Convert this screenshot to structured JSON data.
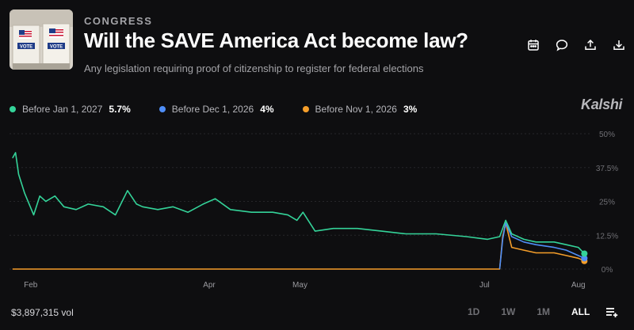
{
  "market": {
    "category": "CONGRESS",
    "title": "Will the SAVE America Act become law?",
    "subtitle": "Any legislation requiring proof of citizenship to register for federal elections",
    "thumbnail_icon": "ballot-box-image",
    "thumbnail_text": "VOTE"
  },
  "toolbar": {
    "icons": [
      "calendar-icon",
      "comment-icon",
      "share-icon",
      "download-icon"
    ]
  },
  "legend": [
    {
      "label": "Before Jan 1, 2027",
      "value": "5.7%",
      "color": "#34d399"
    },
    {
      "label": "Before Dec 1, 2026",
      "value": "4%",
      "color": "#4f8ef7"
    },
    {
      "label": "Before Nov 1, 2026",
      "value": "3%",
      "color": "#f59e2a"
    }
  ],
  "brand": "Kalshi",
  "chart_data": {
    "type": "line",
    "x_ticks": [
      "Feb",
      "Apr",
      "May",
      "Jul",
      "Aug"
    ],
    "y_ticks": [
      "50%",
      "37.5%",
      "25%",
      "12.5%",
      "0%"
    ],
    "ylim": [
      0,
      50
    ],
    "grid": true,
    "legend_position": "top-left",
    "series": [
      {
        "name": "Before Jan 1, 2027",
        "color": "#34d399",
        "x": [
          "Jan 26",
          "Jan 27",
          "Jan 28",
          "Jan 30",
          "Feb 2",
          "Feb 4",
          "Feb 6",
          "Feb 9",
          "Feb 12",
          "Feb 16",
          "Feb 20",
          "Feb 25",
          "Mar 1",
          "Mar 5",
          "Mar 8",
          "Mar 10",
          "Mar 15",
          "Mar 20",
          "Mar 25",
          "Mar 30",
          "Apr 3",
          "Apr 8",
          "Apr 15",
          "Apr 22",
          "Apr 27",
          "Apr 30",
          "May 2",
          "May 6",
          "May 12",
          "May 20",
          "May 28",
          "Jun 5",
          "Jun 15",
          "Jun 25",
          "Jul 2",
          "Jul 6",
          "Jul 8",
          "Jul 10",
          "Jul 14",
          "Jul 18",
          "Jul 24",
          "Jul 28",
          "Aug 1",
          "Aug 3"
        ],
        "values": [
          41,
          43,
          35,
          28,
          20,
          27,
          25,
          27,
          23,
          22,
          24,
          23,
          20,
          29,
          24,
          23,
          22,
          23,
          21,
          24,
          26,
          22,
          21,
          21,
          20,
          18,
          21,
          14,
          15,
          15,
          14,
          13,
          13,
          12,
          11,
          12,
          18,
          13,
          11,
          10,
          10,
          9,
          8,
          5.7
        ]
      },
      {
        "name": "Before Dec 1, 2026",
        "color": "#4f8ef7",
        "x": [
          "Jul 6",
          "Jul 7",
          "Jul 8",
          "Jul 10",
          "Jul 14",
          "Jul 18",
          "Jul 24",
          "Jul 28",
          "Aug 1",
          "Aug 3"
        ],
        "values": [
          0,
          11,
          17,
          12,
          10,
          9,
          8,
          7,
          5,
          4
        ]
      },
      {
        "name": "Before Nov 1, 2026",
        "color": "#f59e2a",
        "x": [
          "Jan 26",
          "Jul 6",
          "Jul 7",
          "Jul 8",
          "Jul 10",
          "Jul 14",
          "Jul 18",
          "Jul 24",
          "Jul 28",
          "Aug 1",
          "Aug 3"
        ],
        "values": [
          0,
          0,
          12,
          17,
          8,
          7,
          6,
          6,
          5,
          4,
          3
        ]
      }
    ]
  },
  "footer": {
    "volume": "$3,897,315 vol",
    "ranges": [
      "1D",
      "1W",
      "1M",
      "ALL"
    ],
    "active_range": "ALL"
  }
}
